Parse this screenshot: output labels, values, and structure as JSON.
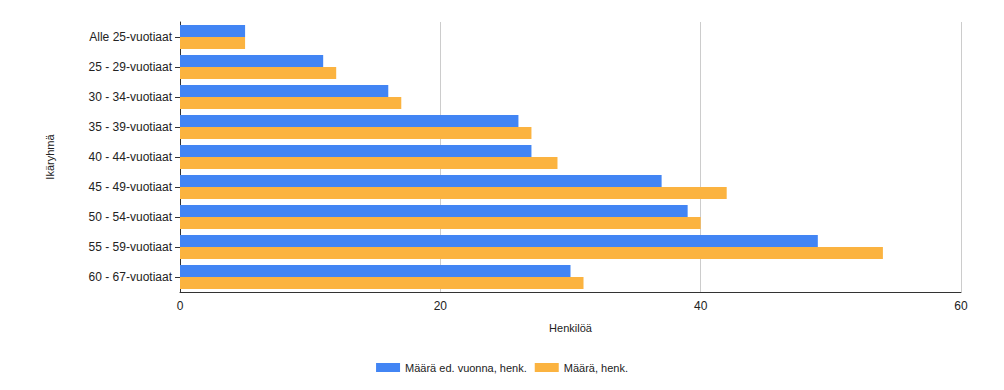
{
  "chart_data": {
    "type": "bar",
    "orientation": "horizontal",
    "xlabel": "Henkilöä",
    "ylabel": "Ikäryhmä",
    "categories": [
      "Alle 25-vuotiaat",
      "25 - 29-vuotiaat",
      "30 - 34-vuotiaat",
      "35 - 39-vuotiaat",
      "40 - 44-vuotiaat",
      "45 - 49-vuotiaat",
      "50 - 54-vuotiaat",
      "55 - 59-vuotiaat",
      "60 - 67-vuotiaat"
    ],
    "series": [
      {
        "name": "Määrä ed. vuonna, henk.",
        "color": "#4285f4",
        "values": [
          5,
          11,
          16,
          26,
          27,
          37,
          39,
          49,
          30
        ]
      },
      {
        "name": "Määrä, henk.",
        "color": "#fbb340",
        "values": [
          5,
          12,
          17,
          27,
          29,
          42,
          40,
          54,
          31
        ]
      }
    ],
    "xlim": [
      0,
      60
    ],
    "xticks": [
      0,
      20,
      40,
      60
    ],
    "grid": true,
    "legend": "bottom"
  }
}
